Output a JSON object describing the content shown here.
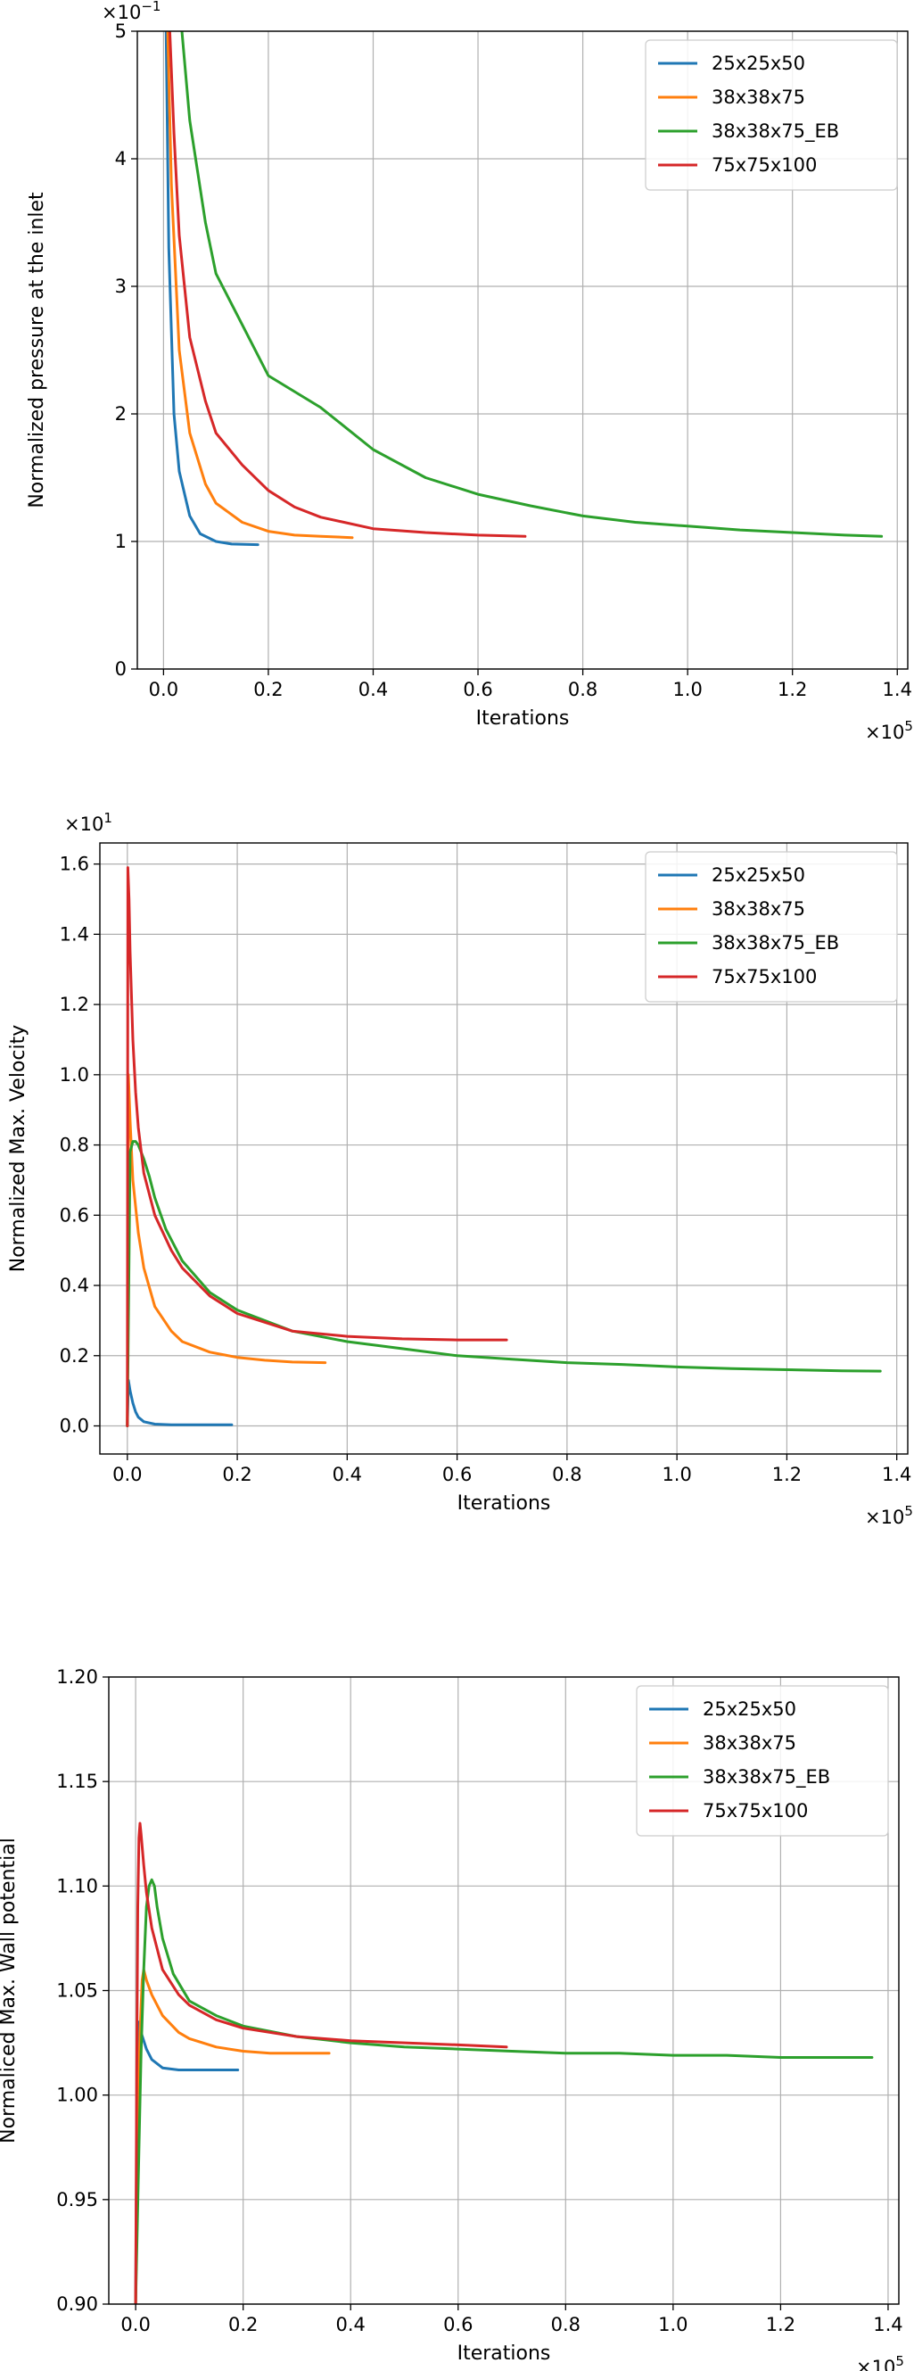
{
  "colors": {
    "25x25x50": "#1f77b4",
    "38x38x75": "#ff7f0e",
    "38x38x75_EB": "#2ca02c",
    "75x75x100": "#d62728",
    "grid": "#b0b0b0",
    "axis": "#000000"
  },
  "chart_data": [
    {
      "type": "line",
      "xlabel": "Iterations",
      "ylabel": "Normalized pressure at the inlet",
      "x_multiplier": "×10",
      "x_exponent": "5",
      "y_multiplier": "×10",
      "y_exponent": "−1",
      "xlim": [
        -0.05,
        1.42
      ],
      "ylim": [
        0,
        5
      ],
      "xticks": [
        0.0,
        0.2,
        0.4,
        0.6,
        0.8,
        1.0,
        1.2,
        1.4
      ],
      "xtick_labels": [
        "0.0",
        "0.2",
        "0.4",
        "0.6",
        "0.8",
        "1.0",
        "1.2",
        "1.4"
      ],
      "yticks": [
        0,
        1,
        2,
        3,
        4,
        5
      ],
      "ytick_labels": [
        "0",
        "1",
        "2",
        "3",
        "4",
        "5"
      ],
      "grid": true,
      "legend": "top-right",
      "series": [
        {
          "name": "25x25x50",
          "x": [
            0.005,
            0.01,
            0.02,
            0.03,
            0.05,
            0.07,
            0.1,
            0.13,
            0.18
          ],
          "y": [
            5.0,
            3.3,
            2.0,
            1.55,
            1.2,
            1.06,
            1.0,
            0.98,
            0.975
          ]
        },
        {
          "name": "38x38x75",
          "x": [
            0.008,
            0.015,
            0.03,
            0.05,
            0.08,
            0.1,
            0.15,
            0.2,
            0.25,
            0.3,
            0.36
          ],
          "y": [
            5.0,
            3.8,
            2.5,
            1.85,
            1.45,
            1.3,
            1.15,
            1.08,
            1.05,
            1.04,
            1.03
          ]
        },
        {
          "name": "38x38x75_EB",
          "x": [
            0.035,
            0.05,
            0.08,
            0.1,
            0.15,
            0.2,
            0.3,
            0.4,
            0.5,
            0.6,
            0.7,
            0.8,
            0.9,
            1.0,
            1.1,
            1.2,
            1.3,
            1.37
          ],
          "y": [
            5.0,
            4.3,
            3.5,
            3.1,
            2.7,
            2.3,
            2.05,
            1.72,
            1.5,
            1.37,
            1.28,
            1.2,
            1.15,
            1.12,
            1.09,
            1.07,
            1.05,
            1.04
          ]
        },
        {
          "name": "75x75x100",
          "x": [
            0.012,
            0.02,
            0.03,
            0.05,
            0.08,
            0.1,
            0.15,
            0.2,
            0.25,
            0.3,
            0.4,
            0.5,
            0.6,
            0.69
          ],
          "y": [
            5.0,
            4.2,
            3.4,
            2.6,
            2.1,
            1.85,
            1.6,
            1.4,
            1.27,
            1.19,
            1.1,
            1.07,
            1.05,
            1.04
          ]
        }
      ]
    },
    {
      "type": "line",
      "xlabel": "Iterations",
      "ylabel": "Normalized Max. Velocity",
      "x_multiplier": "×10",
      "x_exponent": "5",
      "y_multiplier": "×10",
      "y_exponent": "1",
      "xlim": [
        -0.05,
        1.42
      ],
      "ylim": [
        -0.08,
        1.66
      ],
      "xticks": [
        0.0,
        0.2,
        0.4,
        0.6,
        0.8,
        1.0,
        1.2,
        1.4
      ],
      "xtick_labels": [
        "0.0",
        "0.2",
        "0.4",
        "0.6",
        "0.8",
        "1.0",
        "1.2",
        "1.4"
      ],
      "yticks": [
        0.0,
        0.2,
        0.4,
        0.6,
        0.8,
        1.0,
        1.2,
        1.4,
        1.6
      ],
      "ytick_labels": [
        "0.0",
        "0.2",
        "0.4",
        "0.6",
        "0.8",
        "1.0",
        "1.2",
        "1.4",
        "1.6"
      ],
      "grid": true,
      "legend": "top-right",
      "series": [
        {
          "name": "25x25x50",
          "x": [
            0.0,
            0.002,
            0.005,
            0.01,
            0.015,
            0.02,
            0.03,
            0.05,
            0.08,
            0.12,
            0.19
          ],
          "y": [
            0.0,
            0.13,
            0.1,
            0.065,
            0.04,
            0.025,
            0.012,
            0.005,
            0.003,
            0.003,
            0.003
          ]
        },
        {
          "name": "38x38x75",
          "x": [
            0.0,
            0.002,
            0.005,
            0.01,
            0.02,
            0.03,
            0.05,
            0.08,
            0.1,
            0.15,
            0.2,
            0.25,
            0.3,
            0.36
          ],
          "y": [
            0.0,
            1.0,
            0.87,
            0.7,
            0.55,
            0.45,
            0.34,
            0.27,
            0.24,
            0.21,
            0.195,
            0.187,
            0.182,
            0.18
          ]
        },
        {
          "name": "38x38x75_EB",
          "x": [
            0.0,
            0.005,
            0.01,
            0.015,
            0.02,
            0.03,
            0.04,
            0.05,
            0.07,
            0.1,
            0.15,
            0.2,
            0.3,
            0.4,
            0.5,
            0.6,
            0.7,
            0.8,
            0.9,
            1.0,
            1.1,
            1.2,
            1.3,
            1.37
          ],
          "y": [
            0.0,
            0.78,
            0.81,
            0.81,
            0.8,
            0.76,
            0.71,
            0.65,
            0.56,
            0.47,
            0.38,
            0.33,
            0.27,
            0.24,
            0.22,
            0.2,
            0.19,
            0.18,
            0.175,
            0.168,
            0.163,
            0.16,
            0.157,
            0.156
          ]
        },
        {
          "name": "75x75x100",
          "x": [
            0.0,
            0.001,
            0.003,
            0.005,
            0.01,
            0.015,
            0.02,
            0.03,
            0.05,
            0.08,
            0.1,
            0.15,
            0.2,
            0.3,
            0.4,
            0.5,
            0.6,
            0.69
          ],
          "y": [
            0.0,
            1.59,
            1.5,
            1.35,
            1.1,
            0.95,
            0.85,
            0.72,
            0.6,
            0.5,
            0.45,
            0.37,
            0.32,
            0.27,
            0.255,
            0.248,
            0.245,
            0.245
          ]
        }
      ]
    },
    {
      "type": "line",
      "xlabel": "Iterations",
      "ylabel": "Normaliced Max. Wall potential",
      "x_multiplier": "×10",
      "x_exponent": "5",
      "xlim": [
        -0.05,
        1.42
      ],
      "ylim": [
        0.9,
        1.2
      ],
      "xticks": [
        0.0,
        0.2,
        0.4,
        0.6,
        0.8,
        1.0,
        1.2,
        1.4
      ],
      "xtick_labels": [
        "0.0",
        "0.2",
        "0.4",
        "0.6",
        "0.8",
        "1.0",
        "1.2",
        "1.4"
      ],
      "yticks": [
        0.9,
        0.95,
        1.0,
        1.05,
        1.1,
        1.15,
        1.2
      ],
      "ytick_labels": [
        "0.90",
        "0.95",
        "1.00",
        "1.05",
        "1.10",
        "1.15",
        "1.20"
      ],
      "grid": true,
      "legend": "top-right",
      "series": [
        {
          "name": "25x25x50",
          "x": [
            0.0,
            0.002,
            0.004,
            0.006,
            0.01,
            0.015,
            0.02,
            0.03,
            0.05,
            0.08,
            0.12,
            0.19
          ],
          "y": [
            0.9,
            0.98,
            1.02,
            1.035,
            1.03,
            1.026,
            1.022,
            1.017,
            1.013,
            1.012,
            1.012,
            1.012
          ]
        },
        {
          "name": "38x38x75",
          "x": [
            0.0,
            0.004,
            0.008,
            0.012,
            0.015,
            0.02,
            0.03,
            0.05,
            0.08,
            0.1,
            0.15,
            0.2,
            0.25,
            0.3,
            0.36
          ],
          "y": [
            0.9,
            0.98,
            1.03,
            1.055,
            1.06,
            1.055,
            1.048,
            1.038,
            1.03,
            1.027,
            1.023,
            1.021,
            1.02,
            1.02,
            1.02
          ]
        },
        {
          "name": "38x38x75_EB",
          "x": [
            0.0,
            0.005,
            0.01,
            0.015,
            0.02,
            0.025,
            0.03,
            0.035,
            0.04,
            0.05,
            0.07,
            0.1,
            0.15,
            0.2,
            0.3,
            0.4,
            0.5,
            0.6,
            0.7,
            0.8,
            0.9,
            1.0,
            1.1,
            1.2,
            1.3,
            1.37
          ],
          "y": [
            0.9,
            0.96,
            1.02,
            1.06,
            1.09,
            1.1,
            1.103,
            1.1,
            1.09,
            1.075,
            1.058,
            1.045,
            1.038,
            1.033,
            1.028,
            1.025,
            1.023,
            1.022,
            1.021,
            1.02,
            1.02,
            1.019,
            1.019,
            1.018,
            1.018,
            1.018
          ]
        },
        {
          "name": "75x75x100",
          "x": [
            0.0,
            0.002,
            0.004,
            0.006,
            0.008,
            0.01,
            0.015,
            0.02,
            0.03,
            0.05,
            0.08,
            0.1,
            0.15,
            0.2,
            0.3,
            0.4,
            0.5,
            0.6,
            0.69
          ],
          "y": [
            0.9,
            1.01,
            1.09,
            1.123,
            1.13,
            1.125,
            1.11,
            1.097,
            1.08,
            1.06,
            1.048,
            1.043,
            1.036,
            1.032,
            1.028,
            1.026,
            1.025,
            1.024,
            1.023
          ]
        }
      ]
    }
  ]
}
